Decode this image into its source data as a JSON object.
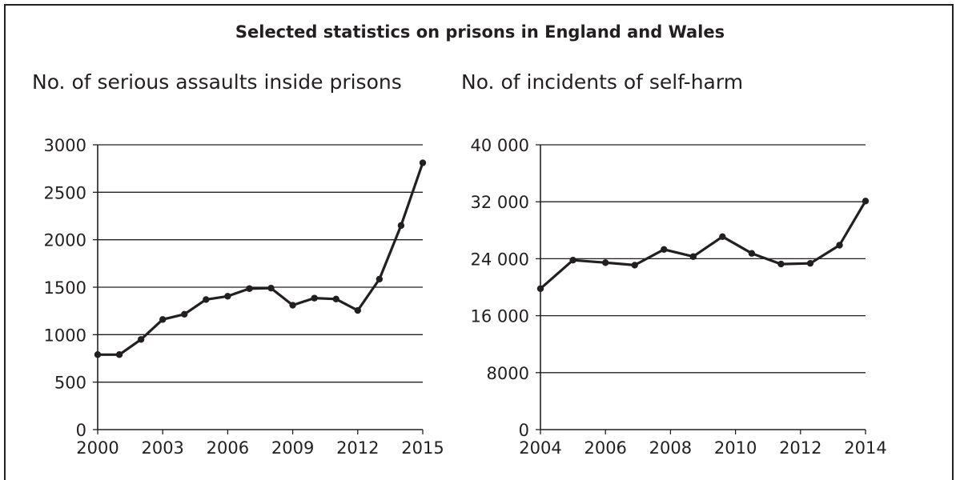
{
  "title": "Selected statistics on prisons in England and Wales",
  "chart_data": [
    {
      "type": "line",
      "title": "No. of serious assaults inside prisons",
      "xlabel": "",
      "ylabel": "",
      "x": [
        2000,
        2001,
        2002,
        2003,
        2004,
        2005,
        2006,
        2007,
        2008,
        2009,
        2010,
        2011,
        2012,
        2013,
        2014,
        2015
      ],
      "values": [
        790,
        790,
        950,
        1160,
        1215,
        1370,
        1405,
        1485,
        1490,
        1310,
        1385,
        1375,
        1255,
        1585,
        2150,
        2810
      ],
      "xlim": [
        2000,
        2015
      ],
      "ylim": [
        0,
        3000
      ],
      "yticks": [
        0,
        500,
        1000,
        1500,
        2000,
        2500,
        3000
      ],
      "ytick_labels": [
        "0",
        "500",
        "1000",
        "1500",
        "2000",
        "2500",
        "3000"
      ],
      "xticks": [
        2000,
        2003,
        2006,
        2009,
        2012,
        2015
      ],
      "xtick_labels": [
        "2000",
        "2003",
        "2006",
        "2009",
        "2012",
        "2015"
      ],
      "grid": true,
      "color": "#231f20"
    },
    {
      "type": "line",
      "title": "No. of incidents of self-harm",
      "xlabel": "",
      "ylabel": "",
      "x": [
        2004,
        2005,
        2006,
        2006.9,
        2007.8,
        2008.7,
        2009.6,
        2010.5,
        2011.4,
        2012.3,
        2013.2,
        2014
      ],
      "values": [
        19800,
        23800,
        23450,
        23100,
        25300,
        24300,
        27100,
        24750,
        23250,
        23350,
        25900,
        32100
      ],
      "xlim": [
        2004,
        2014
      ],
      "ylim": [
        0,
        40000
      ],
      "yticks": [
        0,
        8000,
        16000,
        24000,
        32000,
        40000
      ],
      "ytick_labels": [
        "0",
        "8000",
        "16 000",
        "24 000",
        "32 000",
        "40 000"
      ],
      "xticks": [
        2004,
        2006,
        2008,
        2010,
        2012,
        2014
      ],
      "xtick_labels": [
        "2004",
        "2006",
        "2008",
        "2010",
        "2012",
        "2014"
      ],
      "grid": true,
      "color": "#231f20"
    }
  ]
}
